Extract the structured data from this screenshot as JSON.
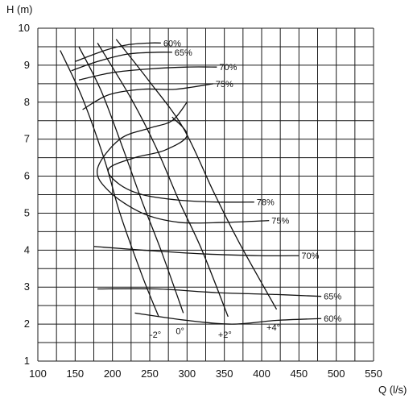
{
  "chart_data": {
    "type": "line",
    "xlabel": "Q (l/s)",
    "ylabel": "H (m)",
    "xlim": [
      100,
      550
    ],
    "ylim": [
      1,
      10
    ],
    "x_ticks": [
      100,
      150,
      200,
      250,
      300,
      350,
      400,
      450,
      500,
      550
    ],
    "y_ticks": [
      1,
      2,
      3,
      4,
      5,
      6,
      7,
      8,
      9,
      10
    ],
    "grid": true,
    "blade_angle_curves": [
      {
        "name": "-2°",
        "points": [
          [
            130,
            9.4
          ],
          [
            160,
            8.1
          ],
          [
            190,
            6.4
          ],
          [
            210,
            5.0
          ],
          [
            240,
            3.3
          ],
          [
            262,
            2.2
          ]
        ]
      },
      {
        "name": "0°",
        "points": [
          [
            155,
            9.5
          ],
          [
            185,
            8.3
          ],
          [
            215,
            6.7
          ],
          [
            240,
            5.3
          ],
          [
            265,
            4.0
          ],
          [
            295,
            2.3
          ]
        ]
      },
      {
        "name": "+2°",
        "points": [
          [
            180,
            9.6
          ],
          [
            225,
            8.1
          ],
          [
            258,
            6.8
          ],
          [
            290,
            5.3
          ],
          [
            320,
            4.0
          ],
          [
            355,
            2.2
          ]
        ]
      },
      {
        "name": "+4°",
        "points": [
          [
            205,
            9.7
          ],
          [
            248,
            8.6
          ],
          [
            295,
            7.3
          ],
          [
            335,
            5.6
          ],
          [
            370,
            4.2
          ],
          [
            420,
            2.4
          ]
        ]
      }
    ],
    "efficiency_curves": [
      {
        "name": "60%",
        "points": [
          [
            150,
            9.1
          ],
          [
            190,
            9.4
          ],
          [
            220,
            9.55
          ],
          [
            250,
            9.6
          ],
          [
            265,
            9.6
          ]
        ]
      },
      {
        "name": "65%",
        "points": [
          [
            145,
            8.85
          ],
          [
            180,
            9.1
          ],
          [
            220,
            9.3
          ],
          [
            260,
            9.35
          ],
          [
            280,
            9.35
          ]
        ]
      },
      {
        "name": "70%",
        "points": [
          [
            155,
            8.6
          ],
          [
            200,
            8.8
          ],
          [
            250,
            8.9
          ],
          [
            300,
            8.95
          ],
          [
            340,
            8.95
          ]
        ]
      },
      {
        "name": "75%",
        "points": [
          [
            160,
            7.8
          ],
          [
            195,
            8.2
          ],
          [
            240,
            8.35
          ],
          [
            285,
            8.35
          ],
          [
            335,
            8.5
          ]
        ]
      },
      {
        "name": "78%",
        "points": [
          [
            280,
            7.6
          ],
          [
            300,
            7.1
          ],
          [
            270,
            6.7
          ],
          [
            230,
            6.5
          ],
          [
            195,
            6.2
          ],
          [
            208,
            5.8
          ],
          [
            240,
            5.5
          ],
          [
            290,
            5.35
          ],
          [
            340,
            5.3
          ],
          [
            390,
            5.3
          ]
        ]
      },
      {
        "name": "75%",
        "points": [
          [
            300,
            8.0
          ],
          [
            280,
            7.5
          ],
          [
            250,
            7.3
          ],
          [
            210,
            7.0
          ],
          [
            180,
            6.2
          ],
          [
            195,
            5.6
          ],
          [
            240,
            5.0
          ],
          [
            290,
            4.75
          ],
          [
            350,
            4.75
          ],
          [
            410,
            4.8
          ]
        ]
      },
      {
        "name": "70%",
        "points": [
          [
            175,
            4.1
          ],
          [
            240,
            4.0
          ],
          [
            320,
            3.9
          ],
          [
            400,
            3.85
          ],
          [
            450,
            3.85
          ]
        ]
      },
      {
        "name": "65%",
        "points": [
          [
            180,
            2.95
          ],
          [
            260,
            2.95
          ],
          [
            340,
            2.85
          ],
          [
            420,
            2.8
          ],
          [
            480,
            2.75
          ]
        ]
      },
      {
        "name": "60%",
        "points": [
          [
            230,
            2.3
          ],
          [
            300,
            2.1
          ],
          [
            360,
            2.0
          ],
          [
            420,
            2.1
          ],
          [
            480,
            2.15
          ]
        ]
      }
    ]
  }
}
